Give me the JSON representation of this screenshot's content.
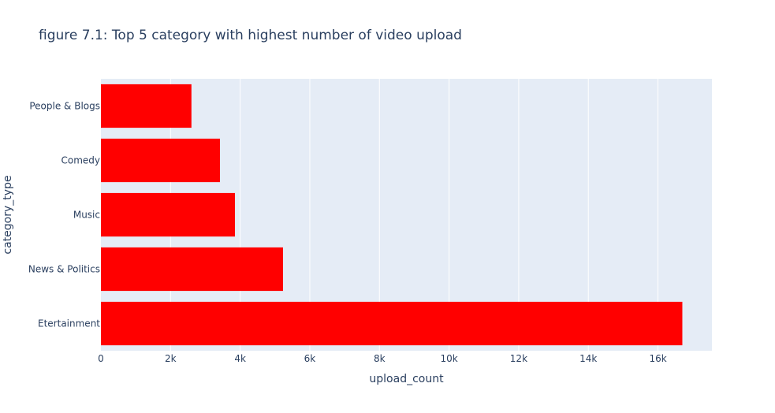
{
  "chart_data": {
    "type": "bar",
    "orientation": "horizontal",
    "title": "figure 7.1: Top 5 category with highest number of video upload",
    "xlabel": "upload_count",
    "ylabel": "category_type",
    "categories": [
      "People & Blogs",
      "Comedy",
      "Music",
      "News & Politics",
      "Etertainment"
    ],
    "values": [
      2600,
      3420,
      3850,
      5230,
      16700
    ],
    "xlim": [
      0,
      17550
    ],
    "x_ticks": [
      0,
      2000,
      4000,
      6000,
      8000,
      10000,
      12000,
      14000,
      16000
    ],
    "x_tick_labels": [
      "0",
      "2k",
      "4k",
      "6k",
      "8k",
      "10k",
      "12k",
      "14k",
      "16k"
    ],
    "grid": true,
    "bar_color": "#ff0000",
    "plot_bg": "#e5ecf6",
    "grid_color": "#ffffff",
    "text_color": "#2a3f5f"
  }
}
